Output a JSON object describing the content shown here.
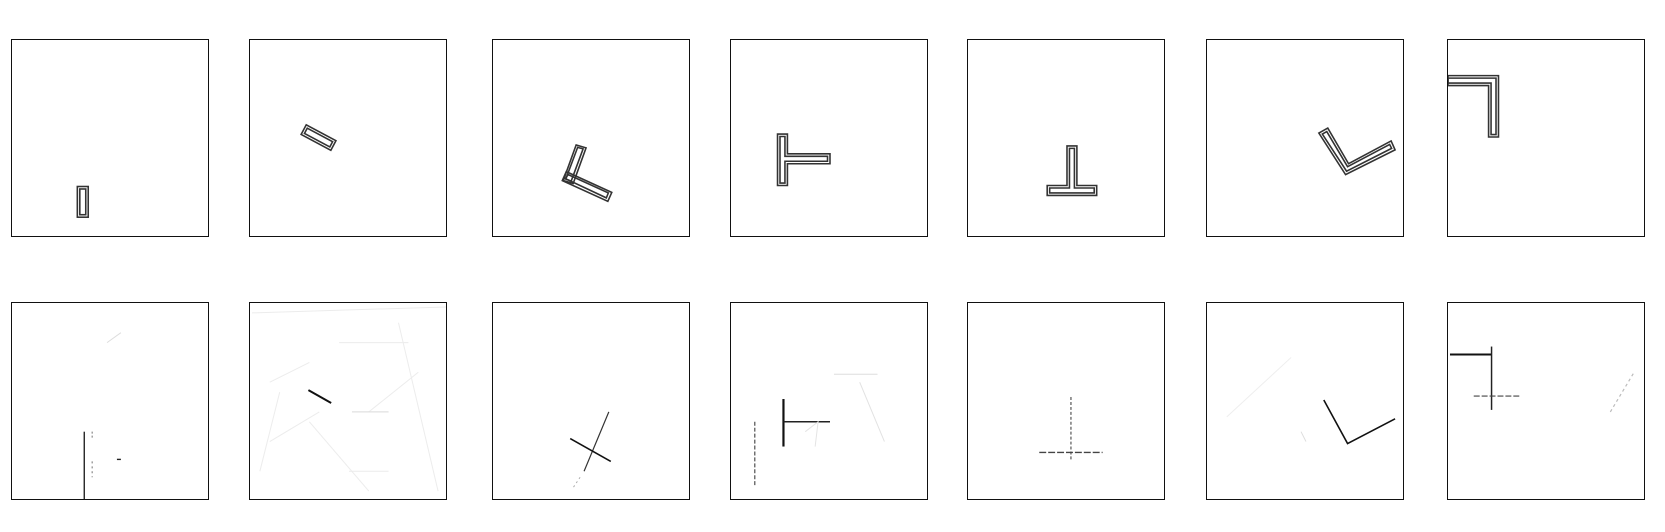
{
  "figure": {
    "rows": [
      {
        "name": "outline-shapes",
        "panels": [
          {
            "shape": "bar"
          },
          {
            "shape": "bar-tilted"
          },
          {
            "shape": "t-tilted"
          },
          {
            "shape": "t-left"
          },
          {
            "shape": "t-inverted"
          },
          {
            "shape": "v-shape"
          },
          {
            "shape": "l-corner"
          }
        ]
      },
      {
        "name": "skeleton-lines",
        "panels": [
          {
            "shape": "bar"
          },
          {
            "shape": "bar-tilted"
          },
          {
            "shape": "t-tilted"
          },
          {
            "shape": "t-left"
          },
          {
            "shape": "t-inverted"
          },
          {
            "shape": "v-shape"
          },
          {
            "shape": "l-corner"
          }
        ]
      }
    ],
    "colors": {
      "frame": "#111111",
      "shape_outline": "#333333",
      "line": "#111111",
      "faint": "#c8c8c8"
    }
  }
}
